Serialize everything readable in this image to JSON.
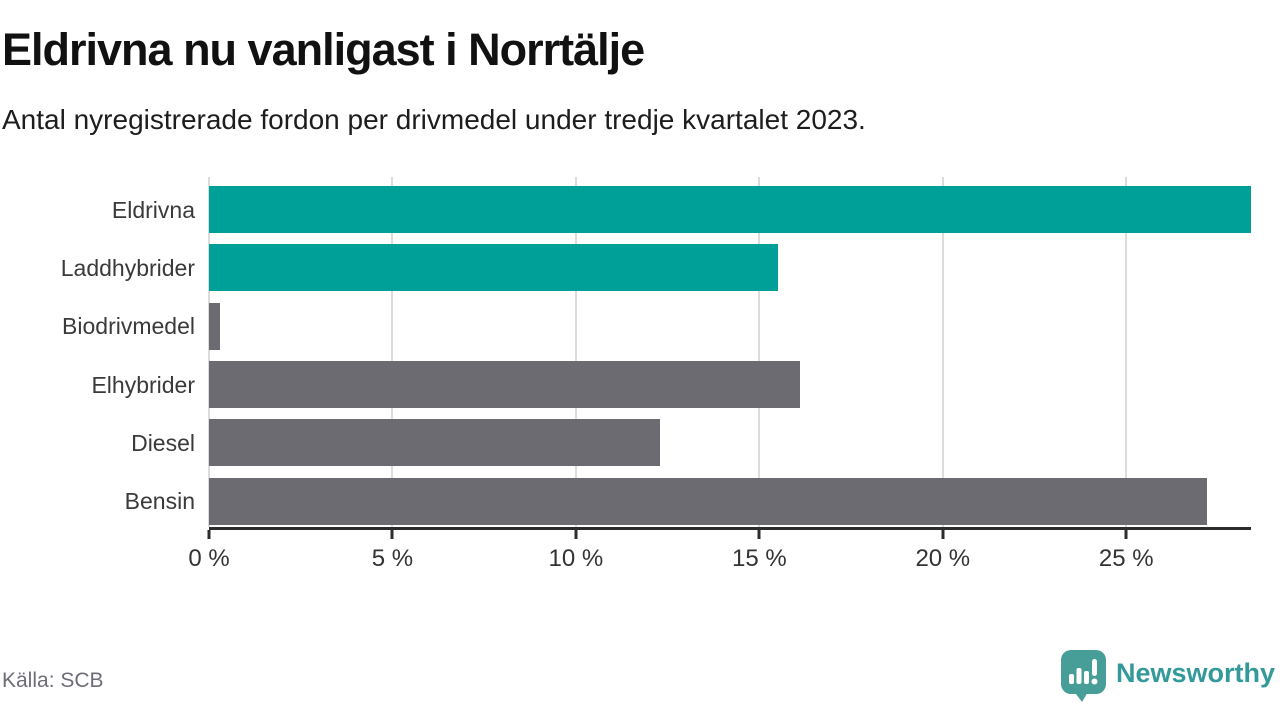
{
  "title": "Eldrivna nu vanligast i Norrtälje",
  "subtitle": "Antal nyregistrerade fordon per drivmedel under tredje kvartalet 2023.",
  "source": "Källa: SCB",
  "brand": {
    "name": "Newsworthy",
    "icon": "bar-chart-speech-bubble-icon",
    "icon_color": "#479e99",
    "text_color": "#33999a"
  },
  "colors": {
    "electric_bar": "#00a099",
    "other_bar": "#6c6b71",
    "gridline": "#dcdcdc",
    "axis": "#2d2d2d"
  },
  "chart_data": {
    "type": "bar",
    "orientation": "horizontal",
    "title": "Eldrivna nu vanligast i Norrtälje",
    "subtitle": "Antal nyregistrerade fordon per drivmedel under tredje kvartalet 2023.",
    "categories": [
      "Eldrivna",
      "Laddhybrider",
      "Biodrivmedel",
      "Elhybrider",
      "Diesel",
      "Bensin"
    ],
    "values": [
      28.4,
      15.5,
      0.3,
      16.1,
      12.3,
      27.2
    ],
    "unit": "%",
    "bar_colors": [
      "#00a099",
      "#00a099",
      "#6c6b71",
      "#6c6b71",
      "#6c6b71",
      "#6c6b71"
    ],
    "x_ticks": [
      0,
      5,
      10,
      15,
      20,
      25
    ],
    "x_tick_labels": [
      "0 %",
      "5 %",
      "10 %",
      "15 %",
      "20 %",
      "25 %"
    ],
    "xlim": [
      0,
      28.4
    ],
    "grid": "vertical",
    "legend": "none",
    "source": "Källa: SCB"
  }
}
